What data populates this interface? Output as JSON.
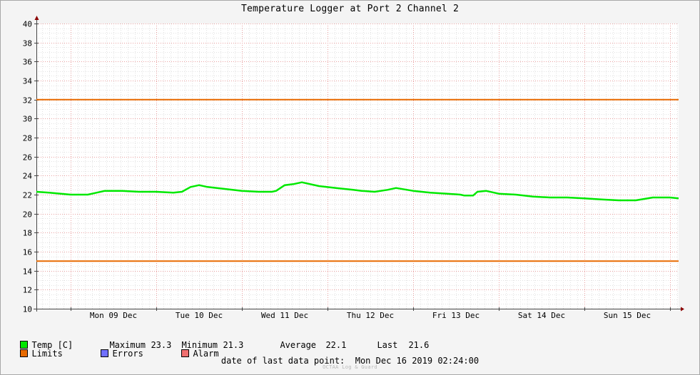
{
  "chart_data": {
    "type": "line",
    "title": "Temperature Logger at Port 2 Channel 2",
    "ylim": [
      10,
      40
    ],
    "yticks": [
      10,
      12,
      14,
      16,
      18,
      20,
      22,
      24,
      26,
      28,
      30,
      32,
      34,
      36,
      38,
      40
    ],
    "xlim": [
      8.6,
      16.1
    ],
    "x_tick_labels": [
      "Mon 09 Dec",
      "Tue 10 Dec",
      "Wed 11 Dec",
      "Thu 12 Dec",
      "Fri 13 Dec",
      "Sat 14 Dec",
      "Sun 15 Dec"
    ],
    "grid": true,
    "series": [
      {
        "name": "Temp [C]",
        "color": "#00e800",
        "x": [
          8.6,
          8.75,
          9.0,
          9.2,
          9.4,
          9.6,
          9.8,
          10.0,
          10.2,
          10.3,
          10.4,
          10.5,
          10.6,
          10.8,
          11.0,
          11.2,
          11.35,
          11.4,
          11.5,
          11.6,
          11.7,
          11.9,
          12.1,
          12.3,
          12.4,
          12.55,
          12.7,
          12.8,
          13.0,
          13.2,
          13.4,
          13.55,
          13.6,
          13.7,
          13.75,
          13.85,
          14.0,
          14.2,
          14.4,
          14.6,
          14.8,
          15.0,
          15.2,
          15.4,
          15.6,
          15.8,
          16.0,
          16.1
        ],
        "values": [
          22.3,
          22.2,
          22.0,
          22.0,
          22.4,
          22.4,
          22.3,
          22.3,
          22.2,
          22.3,
          22.8,
          23.0,
          22.8,
          22.6,
          22.4,
          22.3,
          22.3,
          22.4,
          23.0,
          23.1,
          23.3,
          22.9,
          22.7,
          22.5,
          22.4,
          22.3,
          22.5,
          22.7,
          22.4,
          22.2,
          22.1,
          22.0,
          21.9,
          21.9,
          22.3,
          22.4,
          22.1,
          22.0,
          21.8,
          21.7,
          21.7,
          21.6,
          21.5,
          21.4,
          21.4,
          21.7,
          21.7,
          21.6
        ]
      },
      {
        "name": "Limit high",
        "color": "#e86a00",
        "x": [
          8.6,
          16.1
        ],
        "values": [
          32,
          32
        ]
      },
      {
        "name": "Limit low",
        "color": "#e86a00",
        "x": [
          8.6,
          16.1
        ],
        "values": [
          15,
          15
        ]
      }
    ]
  },
  "legend": {
    "temp_label": "Temp [C]",
    "maximum_label": "Maximum",
    "maximum_value": "23.3",
    "minimum_label": "Minimum",
    "minimum_value": "21.3",
    "average_label": "Average",
    "average_value": "22.1",
    "last_label": "Last",
    "last_value": "21.6",
    "limits_label": "Limits",
    "errors_label": "Errors",
    "alarm_label": "Alarm",
    "colors": {
      "temp": "#00e800",
      "limits": "#e86a00",
      "errors": "#7070ff",
      "alarm": "#f07070"
    }
  },
  "footer": {
    "last_point_label": "date of last data point:",
    "last_point_value": "Mon Dec 16 2019 02:24:00",
    "watermark": "OCTAA Log & Guard"
  }
}
